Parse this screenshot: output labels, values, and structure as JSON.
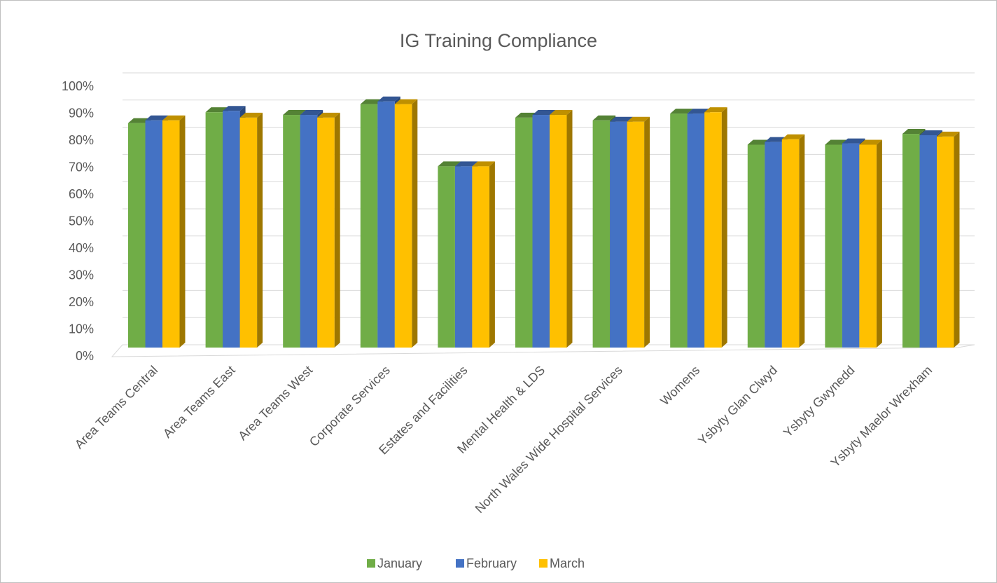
{
  "chart_data": {
    "type": "bar3d",
    "title": "IG Training Compliance",
    "categories": [
      "Area Teams Central",
      "Area Teams East",
      "Area Teams West",
      "Corporate Services",
      "Estates and Facilities",
      "Mental Health & LDS",
      "North Wales Wide Hospital Services",
      "Womens",
      "Ysbyty Glan Clwyd",
      "Ysbyty Gwynedd",
      "Ysbyty Maelor Wrexham"
    ],
    "series": [
      {
        "name": "January",
        "color": "#70ad47",
        "values": [
          83,
          87,
          86,
          90,
          67,
          85,
          84,
          86.5,
          75,
          75,
          79
        ]
      },
      {
        "name": "February",
        "color": "#4472c4",
        "values": [
          84,
          87.5,
          86,
          91,
          67,
          86,
          83.5,
          86.5,
          76,
          75.5,
          78.5
        ]
      },
      {
        "name": "March",
        "color": "#ffc000",
        "values": [
          84,
          85,
          85,
          90,
          67,
          86,
          83.5,
          87,
          77,
          75,
          78
        ]
      }
    ],
    "ylim": [
      0,
      100
    ],
    "yticks": [
      {
        "value": 0,
        "label": "0%"
      },
      {
        "value": 10,
        "label": "10%"
      },
      {
        "value": 20,
        "label": "20%"
      },
      {
        "value": 30,
        "label": "30%"
      },
      {
        "value": 40,
        "label": "40%"
      },
      {
        "value": 50,
        "label": "50%"
      },
      {
        "value": 60,
        "label": "60%"
      },
      {
        "value": 70,
        "label": "70%"
      },
      {
        "value": 80,
        "label": "80%"
      },
      {
        "value": 90,
        "label": "90%"
      },
      {
        "value": 100,
        "label": "100%"
      }
    ],
    "grid": true,
    "legend": "bottom"
  }
}
